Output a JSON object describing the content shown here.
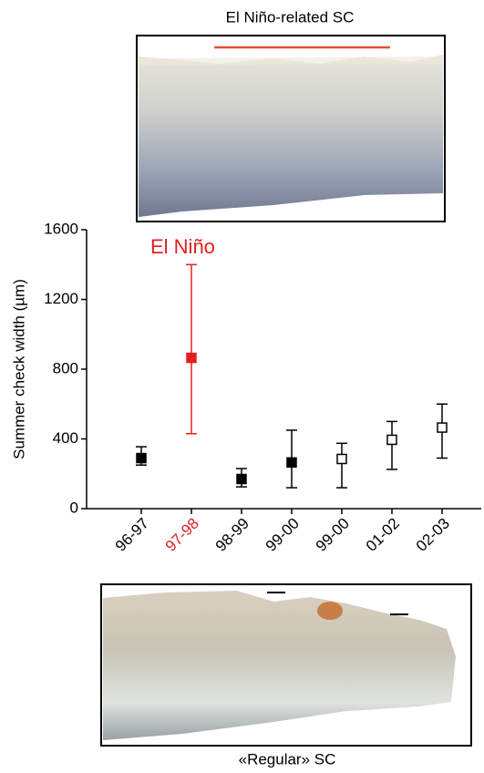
{
  "top_caption": "El Niño-related SC",
  "bottom_caption": "«Regular» SC",
  "chart_data": {
    "type": "errorbar",
    "ylabel": "Summer check width (µm)",
    "annotation": "El Niño",
    "annotation_color": "#e02020",
    "categories": [
      "96-97",
      "97-98",
      "98-99",
      "99-00",
      "99-00",
      "01-02",
      "02-03"
    ],
    "values": [
      290,
      865,
      170,
      265,
      285,
      395,
      465
    ],
    "error_low": [
      250,
      430,
      125,
      120,
      120,
      225,
      290
    ],
    "error_high": [
      355,
      1400,
      230,
      450,
      375,
      500,
      600
    ],
    "colors": [
      "#000000",
      "#e02020",
      "#000000",
      "#000000",
      "#000000",
      "#000000",
      "#000000"
    ],
    "filled": [
      true,
      true,
      true,
      true,
      false,
      false,
      false
    ],
    "ylim": [
      0,
      1600
    ],
    "yticks": [
      0,
      400,
      800,
      1200,
      1600
    ]
  }
}
